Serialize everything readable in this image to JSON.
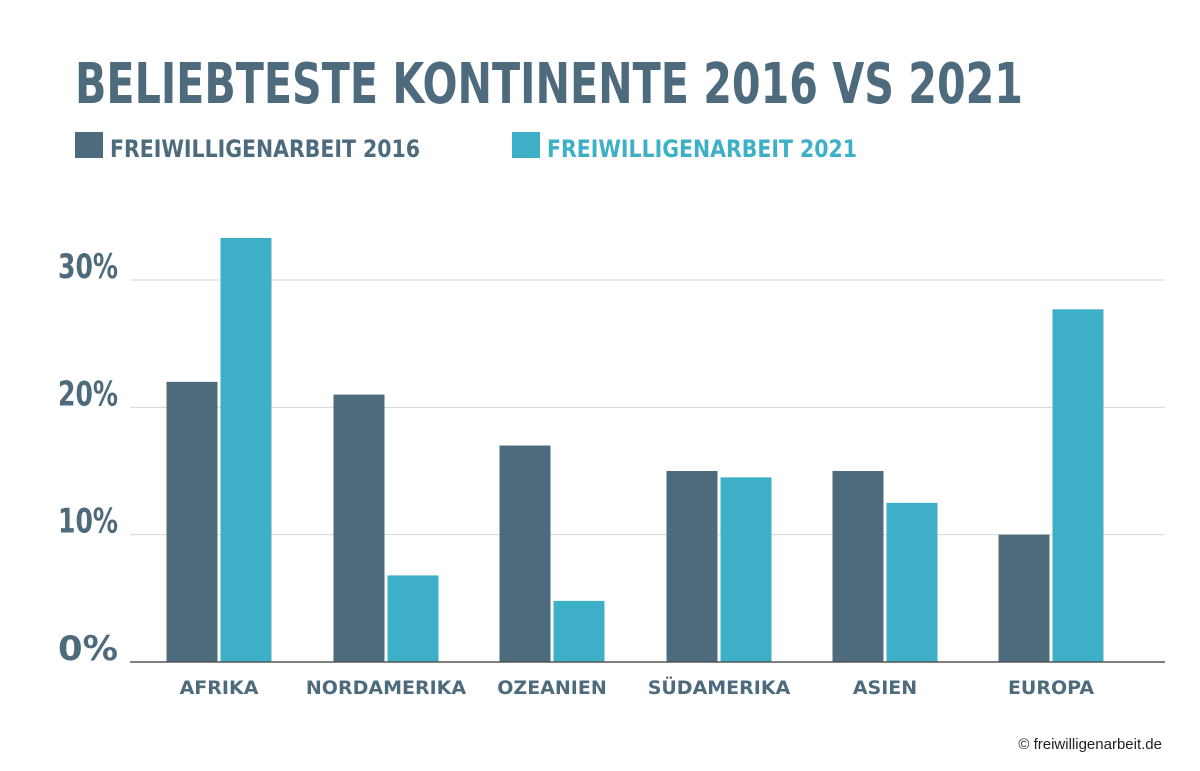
{
  "chart_data": {
    "type": "bar",
    "title": "BELIEBTESTE KONTINENTE 2016 VS 2021",
    "categories": [
      "AFRIKA",
      "NORDAMERIKA",
      "OZEANIEN",
      "SÜDAMERIKA",
      "ASIEN",
      "EUROPA"
    ],
    "series": [
      {
        "name": "FREIWILLIGENARBEIT 2016",
        "color": "#4e6b7e",
        "values": [
          22,
          21,
          17,
          15,
          15,
          10
        ]
      },
      {
        "name": "FREIWILLIGENARBEIT 2021",
        "color": "#3db0c8",
        "values": [
          33.3,
          6.8,
          4.8,
          14.5,
          12.5,
          27.7
        ]
      }
    ],
    "yticks": [
      "0%",
      "10%",
      "20%",
      "30%"
    ],
    "ytick_values": [
      0,
      10,
      20,
      30
    ],
    "ylim": [
      0,
      30
    ],
    "grid": true,
    "legend_position": "top-left",
    "xlabel": "",
    "ylabel": ""
  },
  "colors": {
    "title": "#4e6b7e",
    "axis_text": "#4e6b7e",
    "grid": "#d6d6d6",
    "baseline": "#555555"
  },
  "copyright": "© freiwilligenarbeit.de"
}
